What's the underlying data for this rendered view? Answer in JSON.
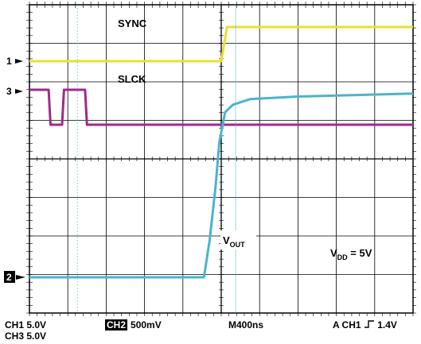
{
  "chart_data": {
    "type": "line",
    "title": "",
    "timebase": "M400ns",
    "trigger": "A CH1 ┡ 1.4V",
    "channels": [
      {
        "id": "CH1",
        "scale": "5.0V",
        "marker": "1"
      },
      {
        "id": "CH2",
        "scale": "500mV",
        "marker": "2"
      },
      {
        "id": "CH3",
        "scale": "5.0V",
        "marker": "3"
      }
    ],
    "series": [
      {
        "name": "SYNC",
        "color": "#e8e030",
        "points": [
          [
            -2000,
            0
          ],
          [
            0,
            0
          ],
          [
            60,
            5
          ],
          [
            2000,
            5
          ]
        ]
      },
      {
        "name": "SLCK",
        "color": "#a02a8a",
        "points": [
          [
            -2000,
            5
          ],
          [
            -1800,
            5
          ],
          [
            -1780,
            0
          ],
          [
            -1660,
            0
          ],
          [
            -1640,
            5
          ],
          [
            -1420,
            5
          ],
          [
            -1400,
            0
          ],
          [
            2000,
            0
          ]
        ]
      },
      {
        "name": "VOUT",
        "color": "#4ab4cc",
        "points": [
          [
            -2000,
            0
          ],
          [
            -180,
            0
          ],
          [
            -120,
            1.0
          ],
          [
            -60,
            2.4
          ],
          [
            -20,
            3.6
          ],
          [
            40,
            4.4
          ],
          [
            120,
            4.6
          ],
          [
            300,
            4.75
          ],
          [
            800,
            4.82
          ],
          [
            2000,
            4.9
          ]
        ]
      }
    ],
    "annotations": {
      "sync_label": "SYNC",
      "slck_label": "SLCK",
      "vout_label": "V",
      "vout_sub": "OUT",
      "vdd_label": "V",
      "vdd_sub": "DD",
      "vdd_value": " = 5V"
    },
    "grid": true,
    "x_divisions": 10,
    "y_divisions": 8
  },
  "footer": {
    "ch1": "CH1 5.0V",
    "ch3": "CH3 5.0V",
    "ch2_badge": "CH2",
    "ch2_scale": "500mV",
    "timebase": "M400ns",
    "trigger_prefix": "A CH1",
    "trigger_level": "1.4V"
  },
  "colors": {
    "ch1": "#e8e030",
    "ch2": "#4ab4cc",
    "ch3": "#a02a8a",
    "grid": "#000000"
  }
}
